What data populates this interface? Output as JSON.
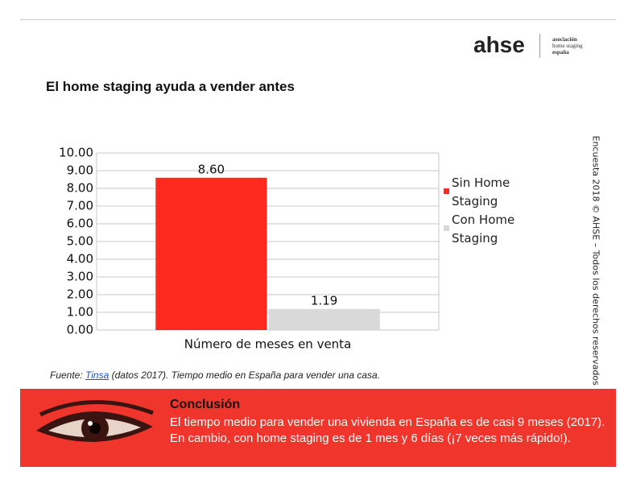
{
  "logo": {
    "mark": "ahse",
    "line1": "asociación",
    "line2": "home staging",
    "line3": "españa"
  },
  "heading": "El home staging ayuda a vender antes",
  "side_note": "Encuesta 2018 © AHSE – Todos los derechos reservados",
  "source": {
    "prefix": "Fuente: ",
    "link": "Tinsa",
    "rest": " (datos 2017). Tiempo medio en España para vender una casa."
  },
  "conclusion": {
    "title": "Conclusión",
    "text": "El tiempo medio para vender una vivienda en España es de casi 9 meses (2017). En cambio, con home staging es de 1 mes y 6 días (¡7 veces más rápido!)."
  },
  "chart_data": {
    "type": "bar",
    "categories": [
      "Número de meses en venta"
    ],
    "series": [
      {
        "name": "Sin Home Staging",
        "color": "#ff2a1f",
        "values": [
          8.6
        ],
        "value_labels": [
          "8.60"
        ]
      },
      {
        "name": "Con Home Staging",
        "color": "#d9d9d9",
        "values": [
          1.19
        ],
        "value_labels": [
          "1.19"
        ]
      }
    ],
    "ylim": [
      0,
      10
    ],
    "yticks": [
      {
        "value": 0,
        "label": "0.00"
      },
      {
        "value": 1,
        "label": "1.00"
      },
      {
        "value": 2,
        "label": "2.00"
      },
      {
        "value": 3,
        "label": "3.00"
      },
      {
        "value": 4,
        "label": "4.00"
      },
      {
        "value": 5,
        "label": "5.00"
      },
      {
        "value": 6,
        "label": "6.00"
      },
      {
        "value": 7,
        "label": "7.00"
      },
      {
        "value": 8,
        "label": "8.00"
      },
      {
        "value": 9,
        "label": "9.00"
      },
      {
        "value": 10,
        "label": "10.00"
      }
    ],
    "grid": true,
    "legend": "right"
  }
}
